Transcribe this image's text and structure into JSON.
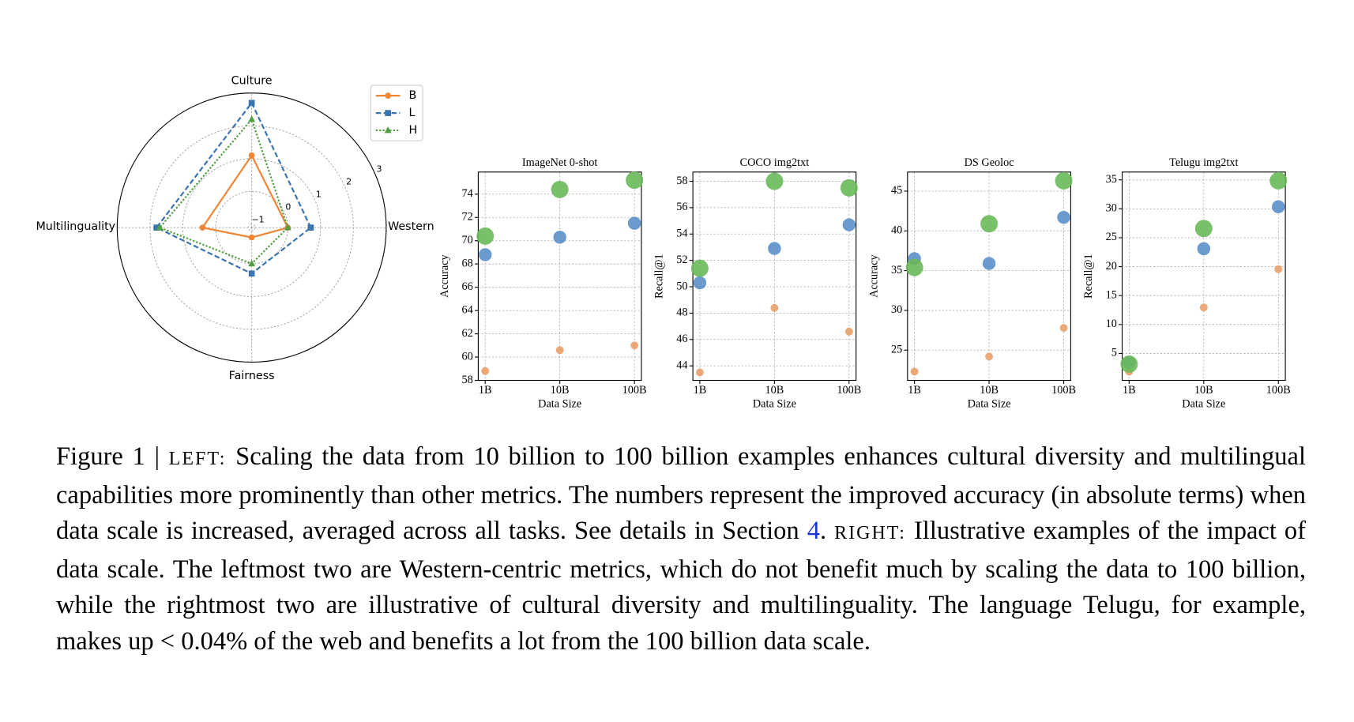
{
  "chart_data": [
    {
      "type": "radar",
      "categories": [
        "Western",
        "Culture",
        "Multilinguality",
        "Fairness"
      ],
      "series": [
        {
          "name": "B",
          "color": "#ef8636",
          "marker": "circle",
          "linestyle": "solid",
          "values": [
            0,
            1.1,
            0.4,
            -0.8
          ]
        },
        {
          "name": "L",
          "color": "#3b75af",
          "marker": "square",
          "linestyle": "dashed",
          "values": [
            0.7,
            2.7,
            1.8,
            0.3
          ]
        },
        {
          "name": "H",
          "color": "#519e3e",
          "marker": "triangle",
          "linestyle": "dotted",
          "values": [
            0,
            2.2,
            1.7,
            0
          ]
        }
      ],
      "ylim": [
        -1.1,
        3
      ],
      "yticks": [
        {
          "value": -1,
          "label": "−1"
        },
        0,
        1,
        2,
        3
      ],
      "grid": true,
      "legend": "upper right"
    },
    {
      "type": "scatter",
      "title": "ImageNet 0-shot",
      "x_label": "Data Size",
      "y_label": "Accuracy",
      "xscale": "log",
      "x": [
        1000000000,
        10000000000,
        100000000000
      ],
      "xlim": [
        807000000,
        124000000000
      ],
      "xticks": [
        {
          "value": 1000000000,
          "label": "1B"
        },
        {
          "value": 10000000000,
          "label": "10B"
        },
        {
          "value": 100000000000,
          "label": "100B"
        }
      ],
      "ylim": [
        58,
        75.9
      ],
      "yticks": [
        58,
        60,
        62,
        64,
        66,
        68,
        70,
        72,
        74
      ],
      "grid": true,
      "series": [
        {
          "color": "#e9a06b",
          "values": [
            58.8,
            60.6,
            61.0
          ]
        },
        {
          "color": "#5b8fc9",
          "values": [
            68.8,
            70.3,
            71.5
          ]
        },
        {
          "color": "#6ab95a",
          "values": [
            70.4,
            74.4,
            75.2
          ]
        }
      ]
    },
    {
      "type": "scatter",
      "title": "COCO img2txt",
      "x_label": "Data Size",
      "y_label": "Recall@1",
      "xscale": "log",
      "x": [
        1000000000,
        10000000000,
        100000000000
      ],
      "xlim": [
        807000000,
        124000000000
      ],
      "xticks": [
        {
          "value": 1000000000,
          "label": "1B"
        },
        {
          "value": 10000000000,
          "label": "10B"
        },
        {
          "value": 100000000000,
          "label": "100B"
        }
      ],
      "ylim": [
        42.9,
        58.7
      ],
      "yticks": [
        44,
        46,
        48,
        50,
        52,
        54,
        56,
        58
      ],
      "grid": true,
      "series": [
        {
          "color": "#e9a06b",
          "values": [
            43.5,
            48.4,
            46.6
          ]
        },
        {
          "color": "#5b8fc9",
          "values": [
            50.3,
            52.9,
            54.7
          ]
        },
        {
          "color": "#6ab95a",
          "values": [
            51.4,
            58.0,
            57.5
          ]
        }
      ]
    },
    {
      "type": "scatter",
      "title": "DS Geoloc",
      "x_label": "Data Size",
      "y_label": "Accuracy",
      "xscale": "log",
      "x": [
        1000000000,
        10000000000,
        100000000000
      ],
      "xlim": [
        807000000,
        124000000000
      ],
      "xticks": [
        {
          "value": 1000000000,
          "label": "1B"
        },
        {
          "value": 10000000000,
          "label": "10B"
        },
        {
          "value": 100000000000,
          "label": "100B"
        }
      ],
      "ylim": [
        21.2,
        47.4
      ],
      "yticks": [
        25,
        30,
        35,
        40,
        45
      ],
      "grid": true,
      "series": [
        {
          "color": "#e9a06b",
          "values": [
            22.3,
            24.2,
            27.8
          ]
        },
        {
          "color": "#5b8fc9",
          "values": [
            36.5,
            35.9,
            41.7
          ]
        },
        {
          "color": "#6ab95a",
          "values": [
            35.4,
            40.9,
            46.3
          ]
        }
      ]
    },
    {
      "type": "scatter",
      "title": "Telugu img2txt",
      "x_label": "Data Size",
      "y_label": "Recall@1",
      "xscale": "log",
      "x": [
        1000000000,
        10000000000,
        100000000000
      ],
      "xlim": [
        807000000,
        124000000000
      ],
      "xticks": [
        {
          "value": 1000000000,
          "label": "1B"
        },
        {
          "value": 10000000000,
          "label": "10B"
        },
        {
          "value": 100000000000,
          "label": "100B"
        }
      ],
      "ylim": [
        0.35,
        36.35
      ],
      "yticks": [
        5,
        10,
        15,
        20,
        25,
        30,
        35
      ],
      "grid": true,
      "series": [
        {
          "color": "#e9a06b",
          "values": [
            1.85,
            12.95,
            19.55
          ]
        },
        {
          "color": "#5b8fc9",
          "values": [
            3.45,
            23.1,
            30.35
          ]
        },
        {
          "color": "#6ab95a",
          "values": [
            3.15,
            26.6,
            34.85
          ]
        }
      ]
    }
  ],
  "caption": {
    "figure": "Figure 1 |",
    "left_label": "LEFT:",
    "left_text": "Scaling the data from 10 billion to 100 billion examples enhances cultural diversity and multilingual capabilities more prominently than other metrics.  The numbers represent the improved accuracy (in absolute terms) when data scale is increased, averaged across all tasks. See details in Section",
    "section_ref": "4",
    "period": ".",
    "right_label": "RIGHT:",
    "right_text": "Illustrative examples of the impact of data scale.  The leftmost two are Western-centric metrics, which do not benefit much by scaling the data to 100 billion, while the rightmost two are illustrative of cultural diversity and multilinguality. The language Telugu, for example, makes up < 0.04% of the web and benefits a lot from the 100 billion data scale."
  }
}
